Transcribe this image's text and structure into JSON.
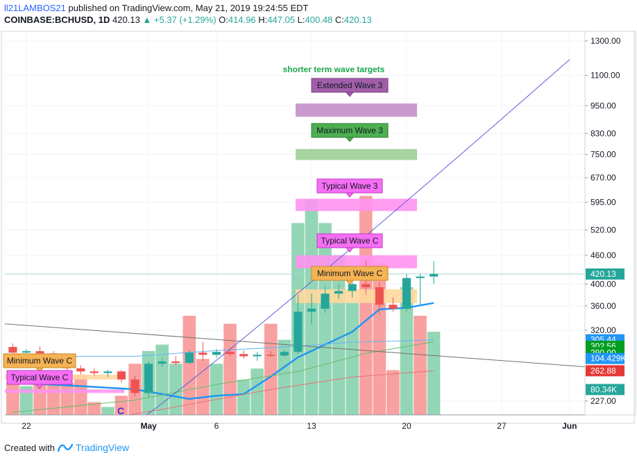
{
  "header": {
    "author": "ll21LAMBOS21",
    "published_text": "published on TradingView.com, May 21, 2019 19:24:55 EDT",
    "symbol": "COINBASE:BCHUSD, 1D",
    "last": "420.13",
    "change": "▲ +5.37 (+1.29%)",
    "o_label": "O:",
    "o": "414.96",
    "h_label": "H:",
    "h": "447.05",
    "l_label": "L:",
    "l": "400.48",
    "c_label": "C:",
    "c": "420.13"
  },
  "footer": {
    "created_with": "Created with",
    "brand": "TradingView"
  },
  "colors": {
    "up": "#26a69a",
    "down": "#ef5350",
    "vol_up": "#80cfa9",
    "vol_down": "#f7918f",
    "ma_blue": "#2196f3"
  },
  "chart_data": {
    "type": "candlestick",
    "title": "shorter term wave targets",
    "y_scale": "log",
    "ylim": [
      195,
      1400
    ],
    "y_ticks": [
      1300,
      1100,
      950,
      830,
      750,
      670,
      595,
      520,
      460,
      400,
      360,
      320,
      227
    ],
    "y_tick_labels": [
      "1300.00",
      "1100.00",
      "950.00",
      "830.00",
      "750.00",
      "670.00",
      "595.00",
      "520.00",
      "460.00",
      "400.00",
      "360.00",
      "320.00",
      "227.00"
    ],
    "x_ticks": [
      {
        "day": -8,
        "label": "22"
      },
      {
        "day": 1,
        "label": "May"
      },
      {
        "day": 6,
        "label": "6"
      },
      {
        "day": 13,
        "label": "13"
      },
      {
        "day": 20,
        "label": "20"
      },
      {
        "day": 27,
        "label": "27"
      },
      {
        "day": 32,
        "label": "Jun"
      }
    ],
    "candles": [
      {
        "day": -9,
        "o": 295,
        "h": 300,
        "l": 282,
        "c": 287
      },
      {
        "day": -8,
        "o": 287,
        "h": 292,
        "l": 283,
        "c": 289
      },
      {
        "day": -7,
        "o": 289,
        "h": 296,
        "l": 282,
        "c": 286
      },
      {
        "day": -6,
        "o": 286,
        "h": 289,
        "l": 274,
        "c": 278
      },
      {
        "day": -5,
        "o": 278,
        "h": 283,
        "l": 262,
        "c": 266
      },
      {
        "day": -4,
        "o": 266,
        "h": 270,
        "l": 258,
        "c": 262
      },
      {
        "day": -3,
        "o": 262,
        "h": 266,
        "l": 257,
        "c": 260
      },
      {
        "day": -2,
        "o": 260,
        "h": 264,
        "l": 255,
        "c": 262
      },
      {
        "day": -1,
        "o": 262,
        "h": 264,
        "l": 248,
        "c": 252
      },
      {
        "day": 0,
        "o": 252,
        "h": 256,
        "l": 232,
        "c": 236
      },
      {
        "day": 1,
        "o": 236,
        "h": 275,
        "l": 232,
        "c": 272
      },
      {
        "day": 2,
        "o": 272,
        "h": 279,
        "l": 268,
        "c": 275
      },
      {
        "day": 3,
        "o": 275,
        "h": 282,
        "l": 270,
        "c": 273
      },
      {
        "day": 4,
        "o": 273,
        "h": 290,
        "l": 272,
        "c": 287
      },
      {
        "day": 5,
        "o": 287,
        "h": 302,
        "l": 276,
        "c": 284
      },
      {
        "day": 6,
        "o": 284,
        "h": 292,
        "l": 280,
        "c": 288
      },
      {
        "day": 7,
        "o": 288,
        "h": 294,
        "l": 282,
        "c": 285
      },
      {
        "day": 8,
        "o": 285,
        "h": 290,
        "l": 279,
        "c": 282
      },
      {
        "day": 9,
        "o": 282,
        "h": 288,
        "l": 276,
        "c": 284
      },
      {
        "day": 10,
        "o": 284,
        "h": 289,
        "l": 281,
        "c": 283
      },
      {
        "day": 11,
        "o": 283,
        "h": 291,
        "l": 281,
        "c": 288
      },
      {
        "day": 12,
        "o": 288,
        "h": 380,
        "l": 285,
        "c": 350
      },
      {
        "day": 13,
        "o": 350,
        "h": 382,
        "l": 330,
        "c": 355
      },
      {
        "day": 14,
        "o": 355,
        "h": 395,
        "l": 348,
        "c": 382
      },
      {
        "day": 15,
        "o": 382,
        "h": 400,
        "l": 372,
        "c": 387
      },
      {
        "day": 16,
        "o": 387,
        "h": 404,
        "l": 375,
        "c": 400
      },
      {
        "day": 17,
        "o": 400,
        "h": 448,
        "l": 380,
        "c": 394
      },
      {
        "day": 18,
        "o": 394,
        "h": 404,
        "l": 345,
        "c": 362
      },
      {
        "day": 19,
        "o": 362,
        "h": 375,
        "l": 350,
        "c": 355
      },
      {
        "day": 20,
        "o": 355,
        "h": 420,
        "l": 350,
        "c": 412
      },
      {
        "day": 21,
        "o": 412,
        "h": 420,
        "l": 362,
        "c": 414.96
      },
      {
        "day": 22,
        "o": 414.96,
        "h": 447.05,
        "l": 400.48,
        "c": 420.13
      }
    ],
    "volume": [
      {
        "day": -9,
        "v": 20,
        "up": false
      },
      {
        "day": -8,
        "v": 18,
        "up": true
      },
      {
        "day": -7,
        "v": 22,
        "up": false
      },
      {
        "day": -6,
        "v": 24,
        "up": false
      },
      {
        "day": -5,
        "v": 20,
        "up": false
      },
      {
        "day": -4,
        "v": 25,
        "up": false
      },
      {
        "day": -3,
        "v": 8,
        "up": false
      },
      {
        "day": -2,
        "v": 5,
        "up": true
      },
      {
        "day": -1,
        "v": 12,
        "up": false
      },
      {
        "day": 0,
        "v": 32,
        "up": false
      },
      {
        "day": 1,
        "v": 40,
        "up": true
      },
      {
        "day": 2,
        "v": 44,
        "up": true
      },
      {
        "day": 3,
        "v": 32,
        "up": true
      },
      {
        "day": 4,
        "v": 62,
        "up": false
      },
      {
        "day": 5,
        "v": 35,
        "up": false
      },
      {
        "day": 6,
        "v": 32,
        "up": true
      },
      {
        "day": 7,
        "v": 57,
        "up": false
      },
      {
        "day": 8,
        "v": 22,
        "up": true
      },
      {
        "day": 9,
        "v": 29,
        "up": true
      },
      {
        "day": 10,
        "v": 57,
        "up": false
      },
      {
        "day": 11,
        "v": 47,
        "up": true
      },
      {
        "day": 12,
        "v": 120,
        "up": true
      },
      {
        "day": 13,
        "v": 135,
        "up": true
      },
      {
        "day": 14,
        "v": 120,
        "up": true
      },
      {
        "day": 15,
        "v": 100,
        "up": true
      },
      {
        "day": 16,
        "v": 70,
        "up": true
      },
      {
        "day": 17,
        "v": 137,
        "up": false
      },
      {
        "day": 18,
        "v": 95,
        "up": false
      },
      {
        "day": 19,
        "v": 28,
        "up": false
      },
      {
        "day": 20,
        "v": 80,
        "up": true
      },
      {
        "day": 21,
        "v": 62,
        "up": false
      },
      {
        "day": 22,
        "v": 52,
        "up": true
      }
    ],
    "volume_ylim": [
      0,
      240
    ],
    "volume_ma": [
      [
        -9,
        20
      ],
      [
        -4,
        18
      ],
      [
        0,
        16
      ],
      [
        2,
        13
      ],
      [
        4,
        10
      ],
      [
        6,
        12
      ],
      [
        8,
        13
      ],
      [
        10,
        24
      ],
      [
        12,
        36
      ],
      [
        14,
        44
      ],
      [
        16,
        52
      ],
      [
        18,
        66
      ],
      [
        20,
        67
      ],
      [
        22,
        70
      ]
    ],
    "target_zones": [
      {
        "label": "Extended Wave 3",
        "low": 900,
        "high": 960,
        "zone_color": "#c48fc9",
        "label_bg": "#a05fa8",
        "label_border": "#7d3f86"
      },
      {
        "label": "Maximum Wave 3",
        "low": 730,
        "high": 770,
        "zone_color": "#9dcf96",
        "label_bg": "#4caf50",
        "label_border": "#2e7d32"
      },
      {
        "label": "Typical Wave 3",
        "low": 570,
        "high": 605,
        "zone_color": "#ff94f0",
        "label_bg": "#f56ef4",
        "label_border": "#c03cc0"
      },
      {
        "label": "Typical Wave C",
        "low": 432,
        "high": 460,
        "zone_color": "#ff94f0",
        "label_bg": "#f56ef4",
        "label_border": "#c03cc0"
      },
      {
        "label": "Minimum Wave C",
        "low": 365,
        "high": 390,
        "zone_color": "#ffd89e",
        "label_bg": "#f6b354",
        "label_border": "#c78a2e"
      }
    ],
    "wave_labels": [
      "C"
    ],
    "price_badges": [
      {
        "value": 420.13,
        "label": "420.13",
        "color": "#26a69a"
      },
      {
        "value": 305.44,
        "label": "305.44",
        "color": "#2196f3"
      },
      {
        "value": 296,
        "label": "302.56",
        "color": "#009e21"
      },
      {
        "value": 287,
        "label": "290.00",
        "color": "#009e21"
      },
      {
        "value": 279,
        "label": "104.429K",
        "color": "#2196f3"
      },
      {
        "value": 262.88,
        "label": "262.88",
        "color": "#e53935"
      },
      {
        "value": 240,
        "label": "80.34K",
        "color": "#26a69a"
      }
    ]
  }
}
